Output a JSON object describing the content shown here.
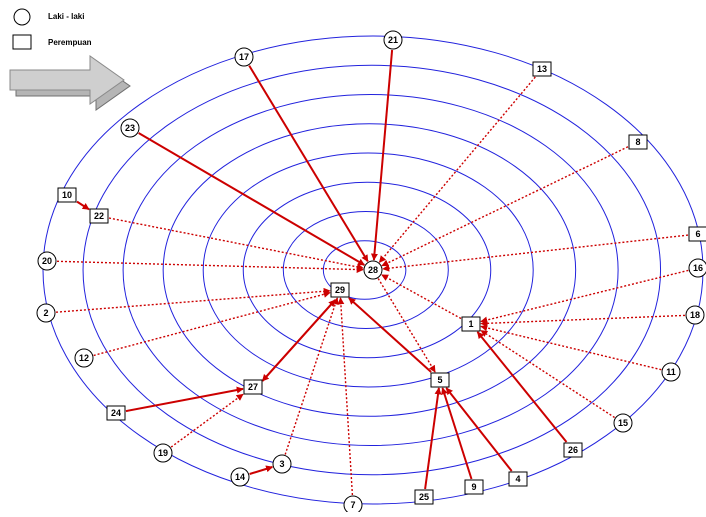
{
  "legend": {
    "male_label": "Laki - laki",
    "female_label": "Perempuan"
  },
  "colors": {
    "ring": "#2222dd",
    "edge": "#cc0000",
    "node_border": "#000000",
    "arrow_fill": "#a9a9a9"
  },
  "nodes": [
    {
      "id": "17",
      "shape": "circle"
    },
    {
      "id": "21",
      "shape": "circle"
    },
    {
      "id": "13",
      "shape": "square"
    },
    {
      "id": "23",
      "shape": "circle"
    },
    {
      "id": "8",
      "shape": "square"
    },
    {
      "id": "10",
      "shape": "square"
    },
    {
      "id": "22",
      "shape": "square"
    },
    {
      "id": "6",
      "shape": "square"
    },
    {
      "id": "16",
      "shape": "circle"
    },
    {
      "id": "20",
      "shape": "circle"
    },
    {
      "id": "28",
      "shape": "circle"
    },
    {
      "id": "29",
      "shape": "square"
    },
    {
      "id": "2",
      "shape": "circle"
    },
    {
      "id": "1",
      "shape": "square"
    },
    {
      "id": "18",
      "shape": "circle"
    },
    {
      "id": "12",
      "shape": "circle"
    },
    {
      "id": "5",
      "shape": "square"
    },
    {
      "id": "11",
      "shape": "circle"
    },
    {
      "id": "27",
      "shape": "square"
    },
    {
      "id": "24",
      "shape": "square"
    },
    {
      "id": "15",
      "shape": "circle"
    },
    {
      "id": "26",
      "shape": "square"
    },
    {
      "id": "19",
      "shape": "circle"
    },
    {
      "id": "3",
      "shape": "circle"
    },
    {
      "id": "14",
      "shape": "circle"
    },
    {
      "id": "4",
      "shape": "square"
    },
    {
      "id": "9",
      "shape": "square"
    },
    {
      "id": "25",
      "shape": "square"
    },
    {
      "id": "7",
      "shape": "circle"
    }
  ],
  "edges": [
    {
      "from": "17",
      "to": "28",
      "style": "solid"
    },
    {
      "from": "21",
      "to": "28",
      "style": "solid"
    },
    {
      "from": "23",
      "to": "28",
      "style": "solid"
    },
    {
      "from": "13",
      "to": "28",
      "style": "dotted"
    },
    {
      "from": "8",
      "to": "28",
      "style": "dotted"
    },
    {
      "from": "6",
      "to": "28",
      "style": "dotted"
    },
    {
      "from": "22",
      "to": "28",
      "style": "dotted"
    },
    {
      "from": "20",
      "to": "28",
      "style": "dotted"
    },
    {
      "from": "10",
      "to": "22",
      "style": "solid"
    },
    {
      "from": "1",
      "to": "28",
      "style": "dotted"
    },
    {
      "from": "28",
      "to": "5",
      "style": "dotted"
    },
    {
      "from": "2",
      "to": "29",
      "style": "dotted"
    },
    {
      "from": "12",
      "to": "29",
      "style": "dotted"
    },
    {
      "from": "3",
      "to": "29",
      "style": "dotted"
    },
    {
      "from": "7",
      "to": "29",
      "style": "dotted"
    },
    {
      "from": "27",
      "to": "29",
      "style": "solid"
    },
    {
      "from": "29",
      "to": "27",
      "style": "solid"
    },
    {
      "from": "5",
      "to": "29",
      "style": "solid"
    },
    {
      "from": "24",
      "to": "27",
      "style": "solid"
    },
    {
      "from": "19",
      "to": "27",
      "style": "dotted"
    },
    {
      "from": "14",
      "to": "3",
      "style": "solid"
    },
    {
      "from": "25",
      "to": "5",
      "style": "solid"
    },
    {
      "from": "9",
      "to": "5",
      "style": "solid"
    },
    {
      "from": "4",
      "to": "5",
      "style": "solid"
    },
    {
      "from": "16",
      "to": "1",
      "style": "dotted"
    },
    {
      "from": "18",
      "to": "1",
      "style": "dotted"
    },
    {
      "from": "11",
      "to": "1",
      "style": "dotted"
    },
    {
      "from": "15",
      "to": "1",
      "style": "dotted"
    },
    {
      "from": "26",
      "to": "1",
      "style": "solid"
    }
  ]
}
